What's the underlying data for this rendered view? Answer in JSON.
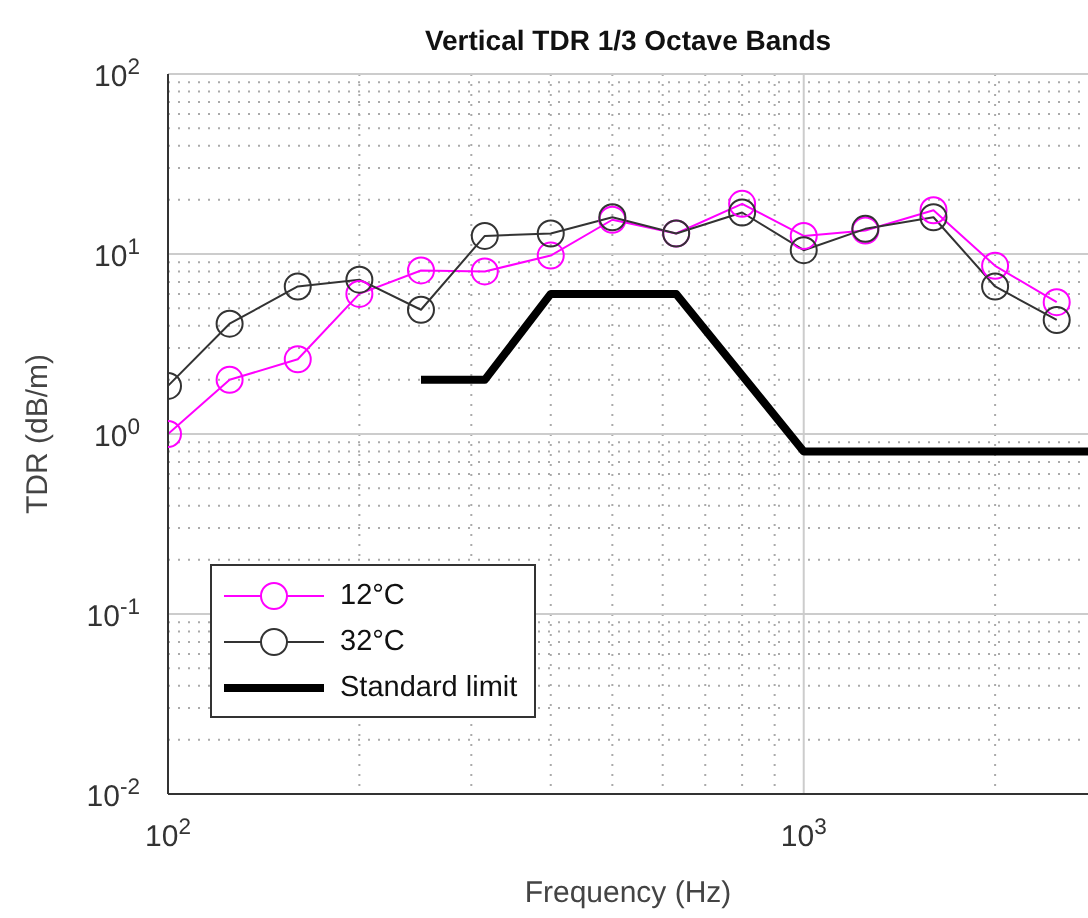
{
  "chart_data": {
    "type": "line",
    "title": "Vertical TDR 1/3 Octave Bands",
    "xlabel": "Frequency (Hz)",
    "ylabel": "TDR (dB/m)",
    "log": "xy",
    "grid": true,
    "legend": "bottom left",
    "marker": "circle",
    "xlim": [
      100,
      2800
    ],
    "xticks": [
      {
        "value": 100,
        "label": "10$^{2}$"
      },
      {
        "value": 1000,
        "label": "10$^{3}$"
      }
    ],
    "ylim": [
      0.01,
      100
    ],
    "yticks": [
      {
        "value": 0.01,
        "label": "10$^{-2}$"
      },
      {
        "value": 0.1,
        "label": "10$^{-1}$"
      },
      {
        "value": 1,
        "label": "10$^{0}$"
      },
      {
        "value": 10,
        "label": "10$^{1}$"
      },
      {
        "value": 100,
        "label": "10$^{2}$"
      }
    ],
    "series": [
      {
        "name": "12°C",
        "color": "#ff00ff",
        "x": [
          100,
          125,
          160,
          200,
          250,
          315,
          400,
          500,
          630,
          800,
          1000,
          1250,
          1600,
          2000,
          2500
        ],
        "values": [
          1.0,
          2.0,
          2.6,
          6.0,
          8.1,
          8,
          9.8,
          15.5,
          13,
          19,
          12.6,
          13.5,
          17.5,
          8.6,
          5.4
        ]
      },
      {
        "name": "32°C",
        "color": "#333333",
        "x": [
          100,
          125,
          160,
          200,
          250,
          315,
          400,
          500,
          630,
          800,
          1000,
          1250,
          1600,
          2000,
          2500
        ],
        "values": [
          1.85,
          4.1,
          6.6,
          7.2,
          4.9,
          12.6,
          13,
          16,
          13,
          17,
          10.5,
          13.8,
          16,
          6.6,
          4.3
        ]
      },
      {
        "name": "Standard limit",
        "color": "#000000",
        "marker": "none",
        "x": [
          250,
          315,
          400,
          630,
          1000,
          2800
        ],
        "values": [
          2,
          2,
          6,
          6,
          0.8,
          0.8
        ]
      }
    ]
  }
}
